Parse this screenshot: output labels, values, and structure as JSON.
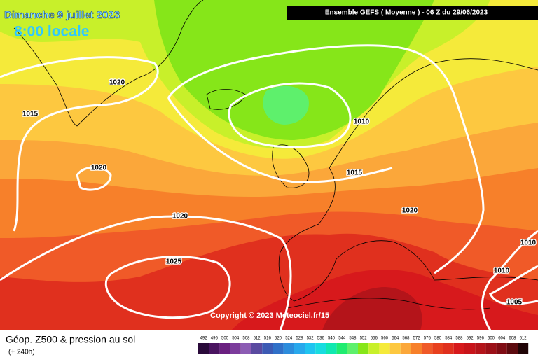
{
  "header": {
    "date": "Dimanche 9 juillet 2023",
    "time": "8:00 locale",
    "model": "Ensemble GEFS  ( Moyenne )  -  06 Z du 29/06/2023"
  },
  "isobar_labels": [
    "1020",
    "1015",
    "1020",
    "1020",
    "1025",
    "1010",
    "1015",
    "1020",
    "1010",
    "1010",
    "1005"
  ],
  "copyright": "Copyright © 2023 Meteociel.fr/15",
  "footer": {
    "title": "Géop. Z500 & pression au sol",
    "lead": "(+ 240h)"
  },
  "scale": {
    "values": [
      492,
      496,
      500,
      504,
      508,
      512,
      516,
      520,
      524,
      528,
      532,
      536,
      540,
      544,
      548,
      552,
      556,
      560,
      564,
      568,
      572,
      576,
      580,
      584,
      588,
      592,
      596,
      600,
      604,
      608,
      612
    ],
    "colors": [
      "#2a0a3a",
      "#4a1460",
      "#6a2080",
      "#7c3c9c",
      "#8c5cb4",
      "#5a4aa0",
      "#3c5ab4",
      "#3070c8",
      "#2c8cdc",
      "#28a8ec",
      "#20c4f0",
      "#18dce0",
      "#10e8b0",
      "#20ec70",
      "#5ef06c",
      "#86e619",
      "#c8f02a",
      "#f5ea3a",
      "#fdc840",
      "#fba73a",
      "#f7802a",
      "#f05a28",
      "#e8401e",
      "#e0301e",
      "#d7191c",
      "#c8141a",
      "#b4141a",
      "#9c1018",
      "#800c14",
      "#5c0a0e",
      "#200406"
    ]
  }
}
